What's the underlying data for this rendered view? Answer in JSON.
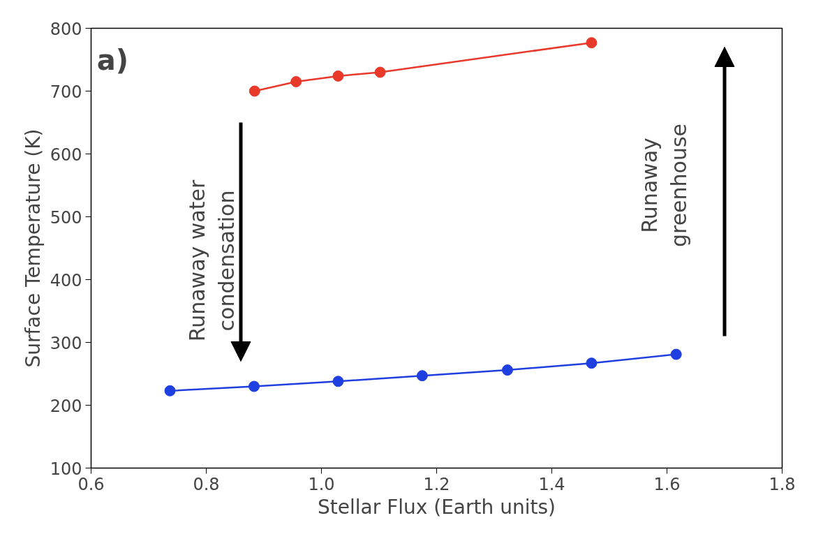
{
  "chart_data": {
    "type": "line",
    "xlabel": "Stellar Flux (Earth units)",
    "ylabel": "Surface Temperature (K)",
    "xlim": [
      0.6,
      1.8
    ],
    "xticks": [
      0.6,
      0.8,
      {
        "value": 1,
        "label": "1.0"
      },
      1.2,
      1.4,
      1.6,
      1.8
    ],
    "ylim": [
      100,
      800
    ],
    "yticks": [
      100,
      200,
      300,
      400,
      500,
      600,
      700,
      800
    ],
    "grid": false,
    "marker": "circle",
    "line_style": "solid",
    "series": [
      {
        "color": "#e8392b",
        "x": [
          0.884,
          0.956,
          1.029,
          1.102,
          1.469
        ],
        "values": [
          700,
          715,
          724,
          730,
          777
        ]
      },
      {
        "color": "#1f3fe0",
        "x": [
          0.737,
          0.883,
          1.029,
          1.175,
          1.323,
          1.469,
          1.616
        ],
        "values": [
          223,
          230,
          238,
          247,
          256,
          267,
          281
        ]
      }
    ],
    "annotations": [
      "a)",
      "Runaway water\ncondensation",
      "Runaway\ngreenhouse"
    ]
  }
}
